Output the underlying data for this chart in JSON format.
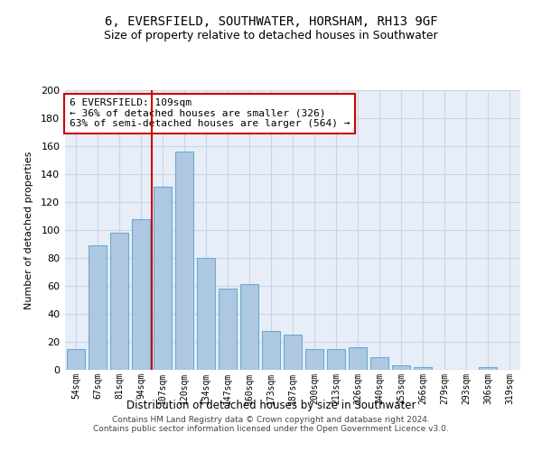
{
  "title1": "6, EVERSFIELD, SOUTHWATER, HORSHAM, RH13 9GF",
  "title2": "Size of property relative to detached houses in Southwater",
  "xlabel": "Distribution of detached houses by size in Southwater",
  "ylabel": "Number of detached properties",
  "categories": [
    "54sqm",
    "67sqm",
    "81sqm",
    "94sqm",
    "107sqm",
    "120sqm",
    "134sqm",
    "147sqm",
    "160sqm",
    "173sqm",
    "187sqm",
    "200sqm",
    "213sqm",
    "226sqm",
    "240sqm",
    "253sqm",
    "266sqm",
    "279sqm",
    "293sqm",
    "306sqm",
    "319sqm"
  ],
  "values": [
    15,
    89,
    98,
    108,
    131,
    156,
    80,
    58,
    61,
    28,
    25,
    15,
    15,
    16,
    9,
    3,
    2,
    0,
    0,
    2,
    0
  ],
  "bar_color": "#adc8e0",
  "bar_edge_color": "#6aaad4",
  "vline_x": 3.5,
  "vline_color": "#cc0000",
  "annotation_text": "6 EVERSFIELD: 109sqm\n← 36% of detached houses are smaller (326)\n63% of semi-detached houses are larger (564) →",
  "annotation_box_color": "white",
  "annotation_box_edge": "#cc0000",
  "ylim": [
    0,
    200
  ],
  "yticks": [
    0,
    20,
    40,
    60,
    80,
    100,
    120,
    140,
    160,
    180,
    200
  ],
  "grid_color": "#c8d4e8",
  "bg_color": "#e8eef8",
  "footer1": "Contains HM Land Registry data © Crown copyright and database right 2024.",
  "footer2": "Contains public sector information licensed under the Open Government Licence v3.0."
}
